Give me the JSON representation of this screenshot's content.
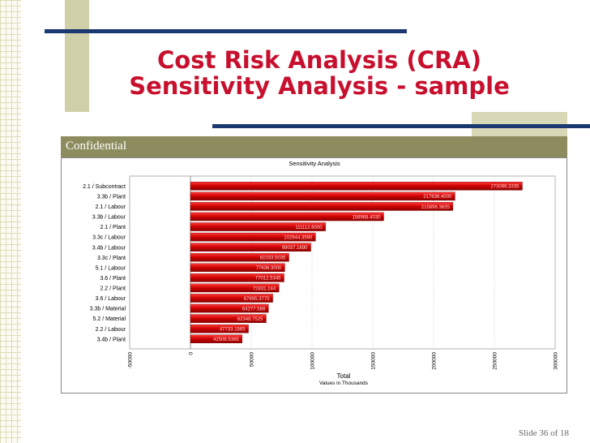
{
  "slide": {
    "title_line1": "Cost Risk Analysis (CRA)",
    "title_line2": "Sensitivity Analysis - sample",
    "confidential": "Confidential",
    "footer": "Slide 36 of 18"
  },
  "chart_data": {
    "type": "bar",
    "orientation": "horizontal",
    "subtitle": "Sensitivity Analysis",
    "xlabel": "Total",
    "xlabel_sub": "Values in Thousands",
    "xlim": [
      -50000,
      300000
    ],
    "ticks": [
      -50000,
      0,
      50000,
      100000,
      150000,
      200000,
      250000,
      300000
    ],
    "tick_labels": [
      "-50000",
      "0",
      "50000",
      "100000",
      "150000",
      "200000",
      "250000",
      "300000"
    ],
    "grid": true,
    "categories": [
      "2.1 / Subcontract",
      "3.3b / Plant",
      "2.1 / Labour",
      "3.3b / Labour",
      "2.1 / Plant",
      "3.3c / Labour",
      "3.4b / Labour",
      "3.3c / Plant",
      "5.1 / Labour",
      "3.6 / Plant",
      "2.2 / Plant",
      "3.6 / Labour",
      "3.3b / Material",
      "5.2 / Material",
      "2.2 / Labour",
      "3.4b / Plant"
    ],
    "values": [
      273000,
      217600,
      215900,
      159000,
      111100,
      102900,
      99000,
      81000,
      77600,
      77000,
      72800,
      67700,
      64200,
      62300,
      47700,
      42500
    ],
    "value_labels": [
      "273096.3335",
      "217636.4000",
      "215896.3635",
      "158968.4030",
      "111112.6000",
      "102944.3590",
      "99037.1690",
      "81033.5035",
      "77636.3000",
      "77012.5345",
      "72831.244",
      "67695.3775",
      "64277.588",
      "62348.7525",
      "47733.1865",
      "42508.5365"
    ],
    "colors": {
      "bar": "#cc0000",
      "bar_dark": "#8a0000",
      "bar_light": "#ff3a3a"
    }
  }
}
